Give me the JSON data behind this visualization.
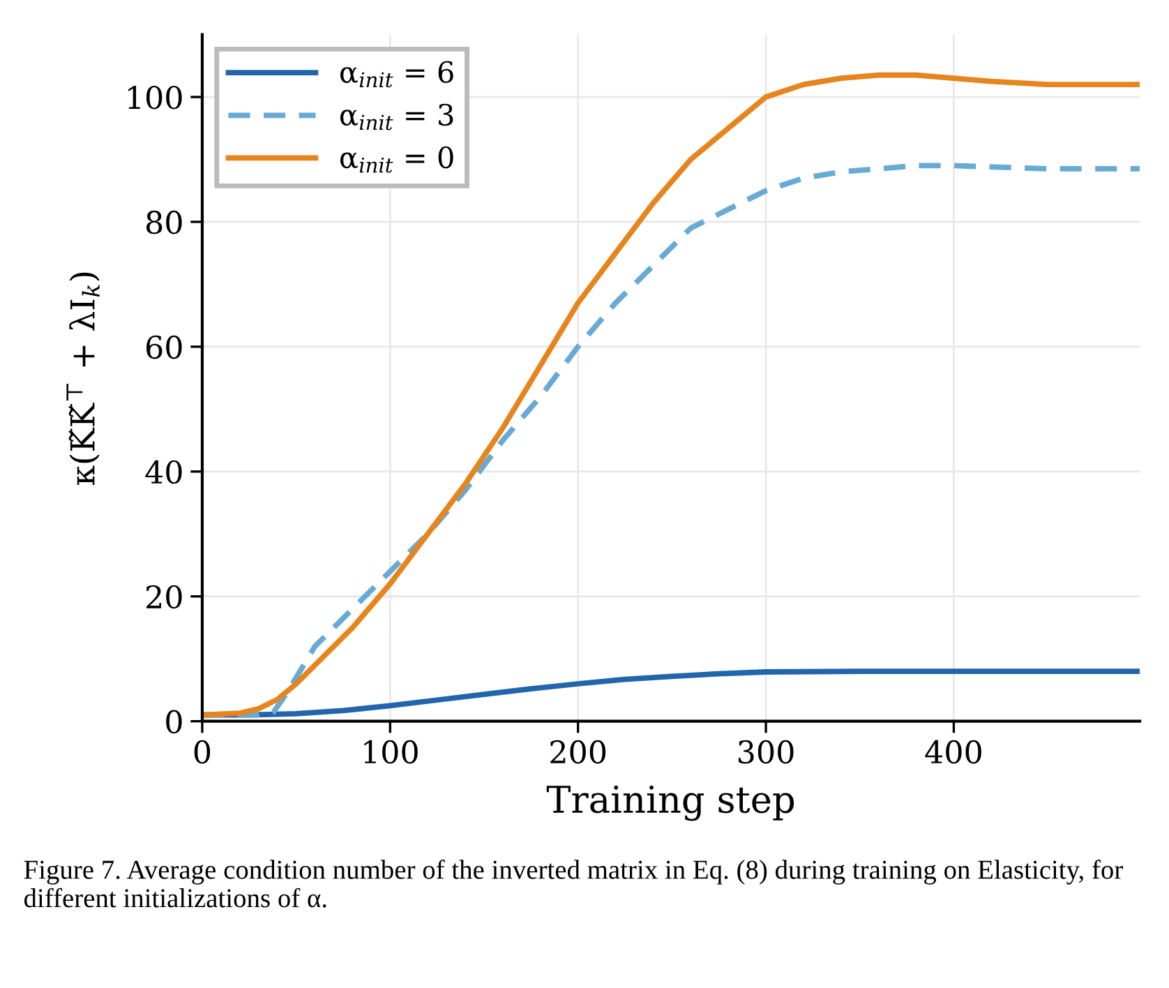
{
  "chart_data": {
    "type": "line",
    "xlabel": "Training step",
    "ylabel": "κ(K̃K̃$^{⊤}$ + λI$_{k}$)",
    "xlim": [
      0,
      499
    ],
    "ylim": [
      0,
      110
    ],
    "xticks": [
      0,
      100,
      200,
      300,
      400
    ],
    "yticks": [
      0,
      20,
      40,
      60,
      80,
      100
    ],
    "grid": true,
    "legend": "top left",
    "annotations": [
      "Figure 7. Average condition number of the inverted matrix in Eq. (8) during training on Elasticity, for different initializations of α."
    ],
    "series": [
      {
        "name": "α$_{init}$ = 6",
        "color": "#2166ac",
        "line_style": "solid",
        "x": [
          0,
          25,
          50,
          75,
          100,
          125,
          150,
          175,
          200,
          225,
          250,
          275,
          300,
          350,
          400,
          450,
          499
        ],
        "values": [
          1,
          1,
          1.2,
          1.7,
          2.5,
          3.4,
          4.3,
          5.2,
          6,
          6.7,
          7.2,
          7.6,
          7.9,
          8,
          8,
          8,
          8
        ]
      },
      {
        "name": "α$_{init}$ = 3",
        "color": "#67aad5",
        "line_style": "dashed",
        "x": [
          0,
          30,
          38,
          45,
          50,
          60,
          80,
          100,
          120,
          140,
          160,
          180,
          200,
          220,
          240,
          260,
          280,
          300,
          320,
          340,
          360,
          380,
          400,
          450,
          499
        ],
        "values": [
          1,
          1,
          1.5,
          4.5,
          7,
          12,
          18,
          24,
          30,
          37,
          45,
          52,
          60,
          67,
          73,
          79,
          82,
          85,
          87,
          88,
          88.5,
          89,
          89,
          88.5,
          88.5
        ]
      },
      {
        "name": "α$_{init}$ = 0",
        "color": "#e6851e",
        "line_style": "solid",
        "x": [
          0,
          20,
          30,
          40,
          50,
          60,
          80,
          100,
          120,
          140,
          160,
          180,
          200,
          220,
          240,
          260,
          280,
          300,
          320,
          340,
          360,
          380,
          400,
          420,
          450,
          499
        ],
        "values": [
          1,
          1.3,
          2,
          3.5,
          6,
          9,
          15,
          22,
          30,
          38,
          47,
          57,
          67,
          75,
          83,
          90,
          95,
          100,
          102,
          103,
          103.5,
          103.5,
          103,
          102.5,
          102,
          102
        ]
      }
    ]
  }
}
